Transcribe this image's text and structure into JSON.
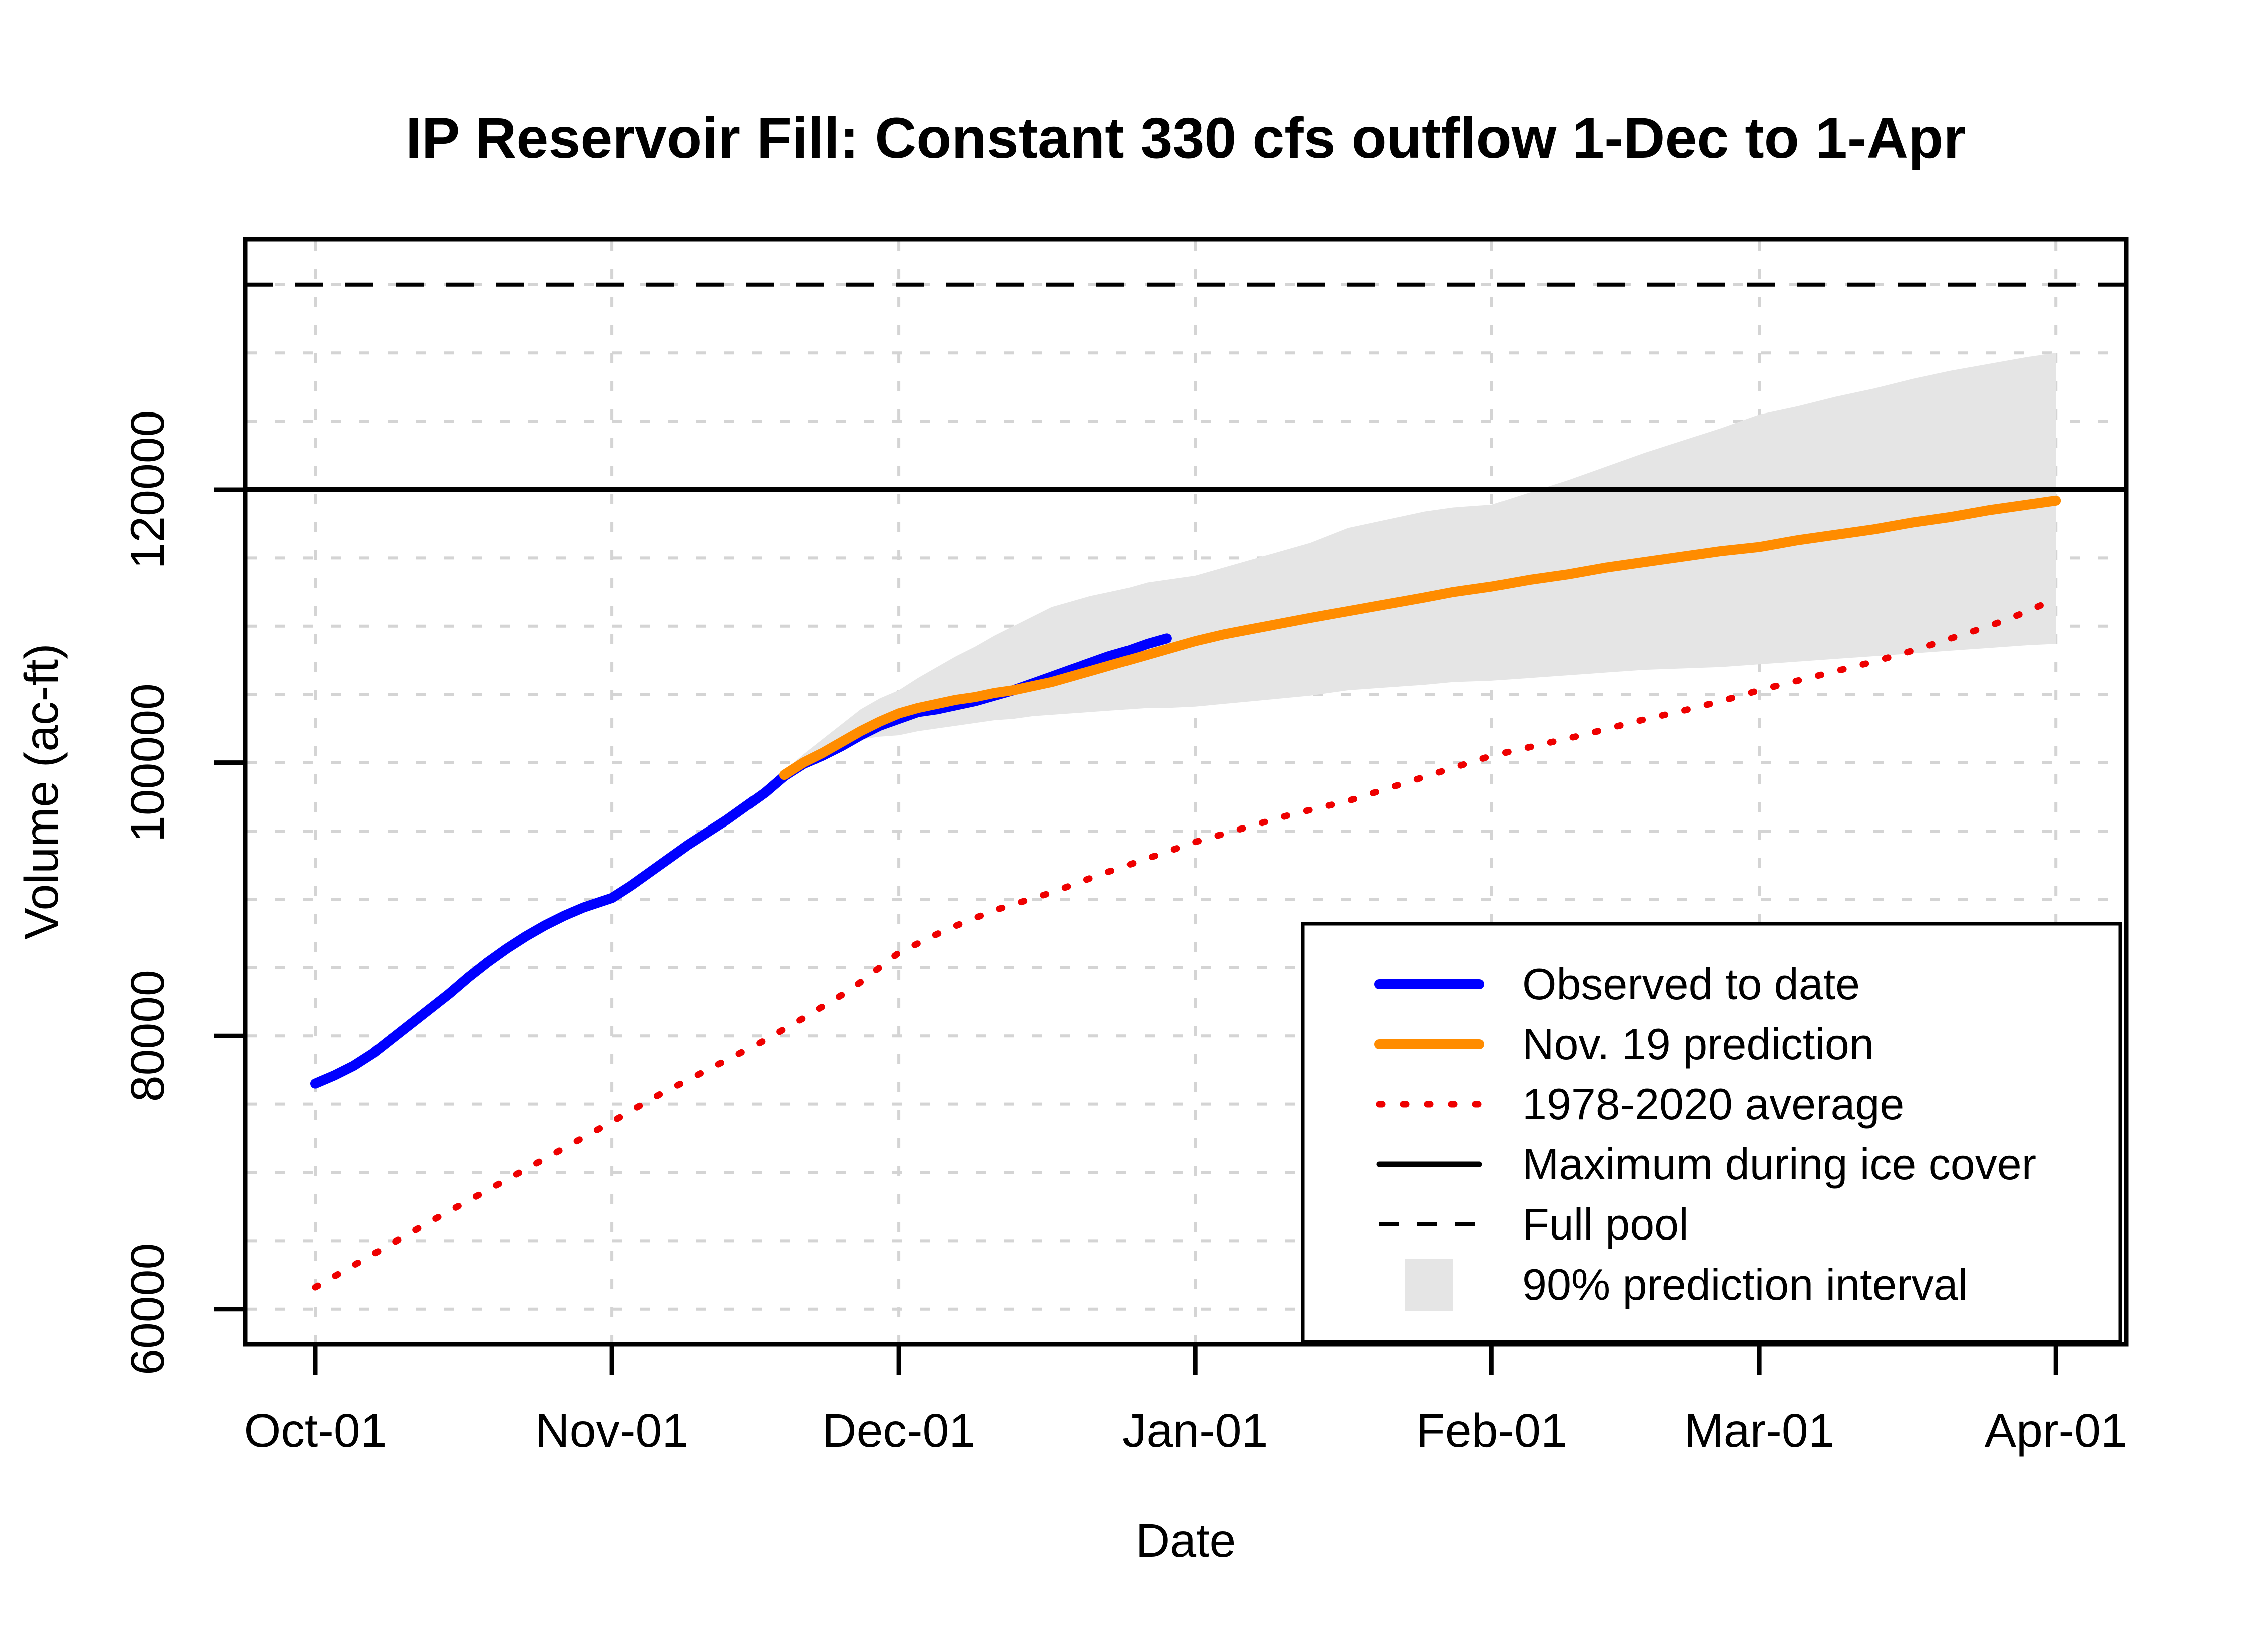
{
  "chart_data": {
    "type": "line",
    "title": "IP Reservoir Fill: Constant 330 cfs outflow 1-Dec to 1-Apr",
    "xlabel": "Date",
    "ylabel": "Volume (ac-ft)",
    "x_tick_labels": [
      "Oct-01",
      "Nov-01",
      "Dec-01",
      "Jan-01",
      "Feb-01",
      "Mar-01",
      "Apr-01"
    ],
    "x_tick_days": [
      0,
      31,
      61,
      92,
      123,
      151,
      182
    ],
    "y_tick_values": [
      60000,
      80000,
      100000,
      120000
    ],
    "y_grid": {
      "min": 60000,
      "max": 135000,
      "step": 5000
    },
    "grid_on": true,
    "grid_color": "#d4d4d4",
    "axis_color": "#000000",
    "legend_position": "bottom-right",
    "reference_lines": [
      {
        "label": "Maximum during ice cover",
        "value": 120000,
        "dash": "solid",
        "color": "#000000",
        "width": 10
      },
      {
        "label": "Full pool",
        "value": 135000,
        "dash": "dashed",
        "color": "#000000",
        "width": 8
      }
    ],
    "band": {
      "label": "90% prediction interval",
      "color": "#e5e5e5",
      "points_day_lo_hi": [
        [
          49,
          99100,
          99400
        ],
        [
          51,
          99900,
          100600
        ],
        [
          53,
          100500,
          101700
        ],
        [
          55,
          101200,
          102800
        ],
        [
          57,
          101700,
          103900
        ],
        [
          59,
          101900,
          104700
        ],
        [
          61,
          102000,
          105300
        ],
        [
          63,
          102300,
          106200
        ],
        [
          65,
          102500,
          107000
        ],
        [
          67,
          102700,
          107800
        ],
        [
          69,
          102900,
          108500
        ],
        [
          71,
          103100,
          109300
        ],
        [
          73,
          103200,
          110000
        ],
        [
          75,
          103400,
          110700
        ],
        [
          77,
          103500,
          111400
        ],
        [
          79,
          103600,
          111800
        ],
        [
          81,
          103700,
          112200
        ],
        [
          83,
          103800,
          112500
        ],
        [
          85,
          103900,
          112800
        ],
        [
          87,
          104000,
          113200
        ],
        [
          89,
          104000,
          113400
        ],
        [
          92,
          104100,
          113700
        ],
        [
          95,
          104300,
          114300
        ],
        [
          98,
          104500,
          114900
        ],
        [
          101,
          104700,
          115500
        ],
        [
          104,
          104900,
          116100
        ],
        [
          108,
          105300,
          117200
        ],
        [
          112,
          105500,
          117800
        ],
        [
          116,
          105700,
          118400
        ],
        [
          119,
          105900,
          118700
        ],
        [
          123,
          106000,
          118900
        ],
        [
          127,
          106200,
          119800
        ],
        [
          131,
          106400,
          120700
        ],
        [
          135,
          106600,
          121700
        ],
        [
          139,
          106800,
          122700
        ],
        [
          143,
          106900,
          123600
        ],
        [
          147,
          107000,
          124500
        ],
        [
          151,
          107200,
          125500
        ],
        [
          155,
          107400,
          126100
        ],
        [
          159,
          107600,
          126800
        ],
        [
          163,
          107800,
          127400
        ],
        [
          167,
          108000,
          128100
        ],
        [
          171,
          108200,
          128700
        ],
        [
          175,
          108400,
          129200
        ],
        [
          179,
          108600,
          129700
        ],
        [
          182,
          108700,
          130000
        ]
      ]
    },
    "series": [
      {
        "label": "Observed to date",
        "color": "#0000ff",
        "dash": "solid",
        "width": 20,
        "points_day_value": [
          [
            0,
            76500
          ],
          [
            2,
            77100
          ],
          [
            4,
            77800
          ],
          [
            6,
            78700
          ],
          [
            8,
            79800
          ],
          [
            10,
            80900
          ],
          [
            12,
            82000
          ],
          [
            14,
            83100
          ],
          [
            16,
            84300
          ],
          [
            18,
            85400
          ],
          [
            20,
            86400
          ],
          [
            22,
            87300
          ],
          [
            24,
            88100
          ],
          [
            26,
            88800
          ],
          [
            28,
            89400
          ],
          [
            31,
            90100
          ],
          [
            33,
            91000
          ],
          [
            35,
            92000
          ],
          [
            37,
            93000
          ],
          [
            39,
            94000
          ],
          [
            41,
            94900
          ],
          [
            43,
            95800
          ],
          [
            45,
            96800
          ],
          [
            47,
            97800
          ],
          [
            49,
            99000
          ],
          [
            51,
            99900
          ],
          [
            53,
            100500
          ],
          [
            55,
            101200
          ],
          [
            57,
            102000
          ],
          [
            59,
            102700
          ],
          [
            61,
            103200
          ],
          [
            63,
            103700
          ],
          [
            65,
            103900
          ],
          [
            67,
            104200
          ],
          [
            69,
            104500
          ],
          [
            71,
            104900
          ],
          [
            73,
            105300
          ],
          [
            75,
            105800
          ],
          [
            77,
            106300
          ],
          [
            79,
            106800
          ],
          [
            81,
            107300
          ],
          [
            83,
            107800
          ],
          [
            85,
            108200
          ],
          [
            87,
            108700
          ],
          [
            89,
            109100
          ]
        ]
      },
      {
        "label": "Nov. 19 prediction",
        "color": "#ff8c00",
        "dash": "solid",
        "width": 20,
        "points_day_value": [
          [
            49,
            99100
          ],
          [
            51,
            100000
          ],
          [
            53,
            100700
          ],
          [
            55,
            101500
          ],
          [
            57,
            102300
          ],
          [
            59,
            103000
          ],
          [
            61,
            103600
          ],
          [
            63,
            104000
          ],
          [
            65,
            104300
          ],
          [
            67,
            104600
          ],
          [
            69,
            104800
          ],
          [
            71,
            105100
          ],
          [
            73,
            105300
          ],
          [
            75,
            105600
          ],
          [
            77,
            105900
          ],
          [
            79,
            106300
          ],
          [
            81,
            106700
          ],
          [
            83,
            107100
          ],
          [
            85,
            107500
          ],
          [
            87,
            107900
          ],
          [
            89,
            108300
          ],
          [
            92,
            108900
          ],
          [
            95,
            109400
          ],
          [
            98,
            109800
          ],
          [
            101,
            110200
          ],
          [
            104,
            110600
          ],
          [
            108,
            111100
          ],
          [
            112,
            111600
          ],
          [
            116,
            112100
          ],
          [
            119,
            112500
          ],
          [
            123,
            112900
          ],
          [
            127,
            113400
          ],
          [
            131,
            113800
          ],
          [
            135,
            114300
          ],
          [
            139,
            114700
          ],
          [
            143,
            115100
          ],
          [
            147,
            115500
          ],
          [
            151,
            115800
          ],
          [
            155,
            116300
          ],
          [
            159,
            116700
          ],
          [
            163,
            117100
          ],
          [
            167,
            117600
          ],
          [
            171,
            118000
          ],
          [
            175,
            118500
          ],
          [
            179,
            118900
          ],
          [
            182,
            119200
          ]
        ]
      },
      {
        "label": "1978-2020 average",
        "color": "#ee0000",
        "dash": "dotted",
        "width": 13,
        "points_day_value": [
          [
            0,
            61600
          ],
          [
            6,
            64000
          ],
          [
            12,
            66400
          ],
          [
            18,
            68700
          ],
          [
            24,
            71000
          ],
          [
            31,
            73700
          ],
          [
            36,
            75700
          ],
          [
            41,
            77500
          ],
          [
            46,
            79300
          ],
          [
            51,
            81300
          ],
          [
            56,
            83400
          ],
          [
            61,
            86100
          ],
          [
            66,
            87800
          ],
          [
            71,
            89200
          ],
          [
            77,
            90500
          ],
          [
            82,
            91800
          ],
          [
            87,
            93000
          ],
          [
            92,
            94200
          ],
          [
            97,
            95200
          ],
          [
            102,
            96200
          ],
          [
            108,
            97200
          ],
          [
            113,
            98300
          ],
          [
            118,
            99400
          ],
          [
            123,
            100500
          ],
          [
            128,
            101300
          ],
          [
            133,
            102100
          ],
          [
            138,
            103000
          ],
          [
            143,
            103800
          ],
          [
            147,
            104500
          ],
          [
            151,
            105300
          ],
          [
            155,
            106000
          ],
          [
            159,
            106700
          ],
          [
            163,
            107400
          ],
          [
            167,
            108200
          ],
          [
            171,
            109100
          ],
          [
            175,
            110000
          ],
          [
            178,
            110800
          ],
          [
            182,
            112000
          ]
        ]
      }
    ]
  }
}
